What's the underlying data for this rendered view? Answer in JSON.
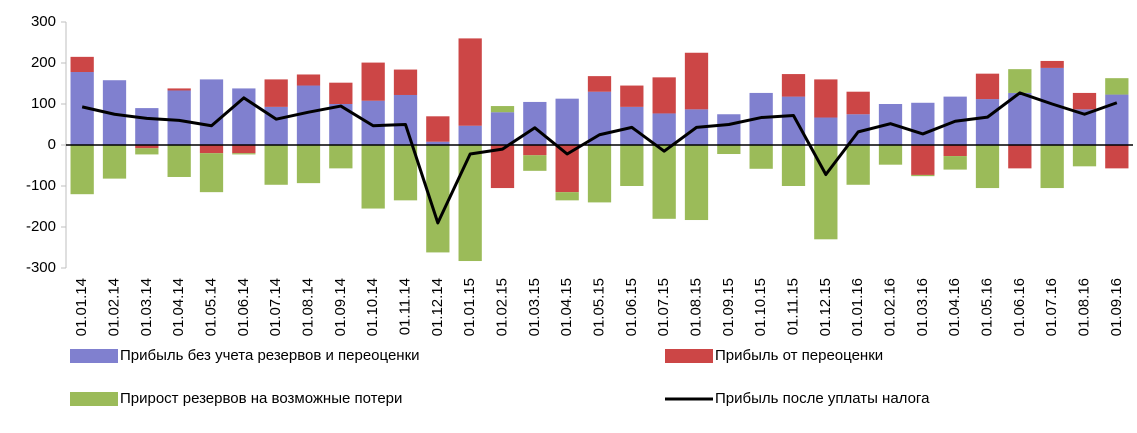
{
  "chart_data": {
    "type": "bar",
    "categories": [
      "01.01.14",
      "01.02.14",
      "01.03.14",
      "01.04.14",
      "01.05.14",
      "01.06.14",
      "01.07.14",
      "01.08.14",
      "01.09.14",
      "01.10.14",
      "01.11.14",
      "01.12.14",
      "01.01.15",
      "01.02.15",
      "01.03.15",
      "01.04.15",
      "01.05.15",
      "01.06.15",
      "01.07.15",
      "01.08.15",
      "01.09.15",
      "01.10.15",
      "01.11.15",
      "01.12.15",
      "01.01.16",
      "01.02.16",
      "01.03.16",
      "01.04.16",
      "01.05.16",
      "01.06.16",
      "01.07.16",
      "01.08.16",
      "01.09.16"
    ],
    "series": [
      {
        "name": "Прибыль без учета резервов и переоценки",
        "type": "bar",
        "color": "#8080cf",
        "values": [
          178,
          158,
          90,
          133,
          160,
          138,
          93,
          145,
          100,
          108,
          122,
          8,
          47,
          80,
          105,
          113,
          130,
          93,
          77,
          87,
          75,
          127,
          118,
          67,
          75,
          100,
          103,
          118,
          112,
          127,
          188,
          87,
          123
        ]
      },
      {
        "name": "Прибыль от переоценки",
        "type": "bar",
        "color": "#cc4646",
        "values": [
          37,
          0,
          -8,
          5,
          -20,
          -20,
          67,
          27,
          52,
          93,
          62,
          62,
          213,
          -105,
          -25,
          -115,
          38,
          52,
          88,
          138,
          0,
          0,
          55,
          93,
          55,
          0,
          -73,
          -27,
          62,
          -57,
          17,
          40,
          -57
        ]
      },
      {
        "name": "Прирост резервов на возможные потери",
        "type": "bar",
        "color": "#9bbb59",
        "values": [
          -120,
          -82,
          -15,
          -78,
          -95,
          -3,
          -97,
          -93,
          -57,
          -155,
          -135,
          -262,
          -283,
          15,
          -38,
          -20,
          -140,
          -100,
          -180,
          -183,
          -22,
          -58,
          -100,
          -230,
          -97,
          -48,
          -3,
          -33,
          -105,
          58,
          -105,
          -52,
          40
        ]
      },
      {
        "name": "Прибыль после уплаты налога",
        "type": "line",
        "color": "#000000",
        "values": [
          93,
          75,
          65,
          60,
          47,
          115,
          63,
          80,
          95,
          47,
          50,
          -190,
          -22,
          -10,
          42,
          -22,
          25,
          43,
          -15,
          43,
          50,
          67,
          72,
          -72,
          32,
          52,
          27,
          58,
          68,
          127,
          100,
          75,
          103
        ]
      }
    ],
    "ylim": [
      -300,
      300
    ],
    "yticks": [
      -300,
      -200,
      -100,
      0,
      100,
      200,
      300
    ],
    "grid": false,
    "legend": "bottom"
  }
}
